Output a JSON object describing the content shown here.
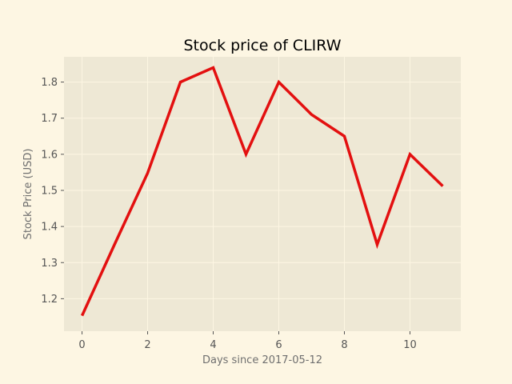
{
  "chart_data": {
    "type": "line",
    "title": "Stock price of CLIRW",
    "xlabel": "Days since 2017-05-12",
    "ylabel": "Stock Price (USD)",
    "x": [
      0,
      1,
      2,
      3,
      4,
      5,
      6,
      7,
      8,
      9,
      10,
      11
    ],
    "series": [
      {
        "values": [
          1.153,
          1.352,
          1.548,
          1.8,
          1.84,
          1.6,
          1.8,
          1.71,
          1.65,
          1.35,
          1.6,
          1.512
        ]
      }
    ],
    "xlim": [
      -0.55,
      11.55
    ],
    "ylim": [
      1.11,
      1.87
    ],
    "xticks": [
      0,
      2,
      4,
      6,
      8,
      10
    ],
    "xtick_labels": [
      "0",
      "2",
      "4",
      "6",
      "8",
      "10"
    ],
    "yticks": [
      1.2,
      1.3,
      1.4,
      1.5,
      1.6,
      1.7,
      1.8
    ],
    "ytick_labels": [
      "1.2",
      "1.3",
      "1.4",
      "1.5",
      "1.6",
      "1.7",
      "1.8"
    ],
    "grid": true,
    "colors": {
      "line": "#e31010",
      "plot_background": "#eee8d5",
      "grid": "#fdf6e3",
      "page_background": "#fdf6e3"
    }
  }
}
